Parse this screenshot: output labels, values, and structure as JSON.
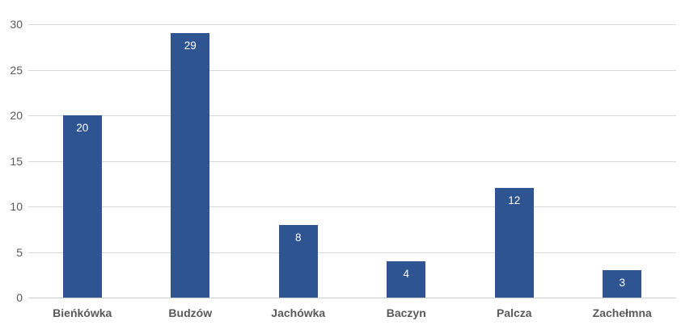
{
  "chart_data": {
    "type": "bar",
    "title": "",
    "xlabel": "",
    "ylabel": "",
    "categories": [
      "Bieńkówka",
      "Budzów",
      "Jachówka",
      "Baczyn",
      "Palcza",
      "Zachełmna"
    ],
    "values": [
      20,
      29,
      8,
      4,
      12,
      3
    ],
    "ylim": [
      0,
      30
    ],
    "yticks": [
      0,
      5,
      10,
      15,
      20,
      25,
      30
    ],
    "grid": true,
    "legend": false,
    "data_labels_position": "inside-end",
    "colors": {
      "bar": "#2F5492",
      "gridline": "#D9D9D9",
      "axis_line": "#CFCFCF",
      "tick_label": "#595959",
      "category_label": "#595959",
      "data_label": "#FFFFFF",
      "background": "#FFFFFF"
    }
  }
}
